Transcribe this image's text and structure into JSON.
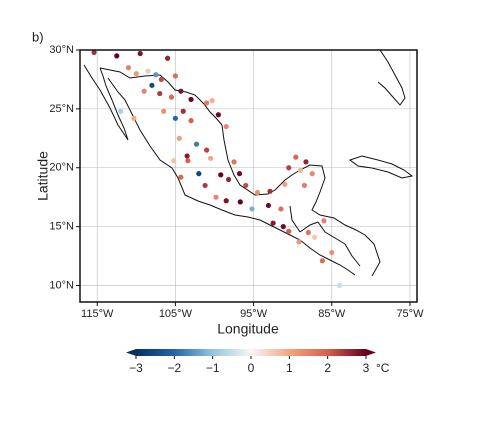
{
  "chart_data": {
    "type": "scatter",
    "panel_label": "b)",
    "xlabel": "Longitude",
    "ylabel": "Latitude",
    "xlim": [
      -117.2,
      -74.1
    ],
    "ylim": [
      8.6,
      30
    ],
    "xticks": [
      {
        "value": -115,
        "label": "115°W"
      },
      {
        "value": -105,
        "label": "105°W"
      },
      {
        "value": -95,
        "label": "95°W"
      },
      {
        "value": -85,
        "label": "85°W"
      },
      {
        "value": -75,
        "label": "75°W"
      }
    ],
    "yticks": [
      {
        "value": 10,
        "label": "10°N"
      },
      {
        "value": 15,
        "label": "15°N"
      },
      {
        "value": 20,
        "label": "20°N"
      },
      {
        "value": 25,
        "label": "25°N"
      },
      {
        "value": 30,
        "label": "30°N"
      }
    ],
    "grid": true,
    "x": [
      -115.4,
      -112.5,
      -109.5,
      -106,
      -111,
      -110,
      -108.5,
      -107.5,
      -106.8,
      -105,
      -108,
      -109,
      -107,
      -105.5,
      -104.3,
      -103,
      -112,
      -110.3,
      -106.5,
      -105,
      -104,
      -103,
      -101,
      -100.3,
      -99.5,
      -98.5,
      -104.5,
      -103.5,
      -102.3,
      -101,
      -100.5,
      -99.2,
      -98.2,
      -97.5,
      -96.8,
      -102,
      -103.4,
      -105.2,
      -104.3,
      -101.2,
      -99.8,
      -98.5,
      -96.7,
      -95.2,
      -96,
      -94.5,
      -93.1,
      -92.5,
      -91.5,
      -92.9,
      -91,
      -89.6,
      -88.3,
      -87.5,
      -89,
      -90.5,
      -88.5,
      -90.5,
      -89.2,
      -88,
      -87.2,
      -86.2,
      -85,
      -84,
      -86,
      -91.2
    ],
    "y": [
      29.8,
      29.5,
      29.7,
      29.3,
      28.5,
      28,
      28.2,
      27.9,
      27.5,
      27.8,
      27,
      26.5,
      26.3,
      26,
      26.5,
      25.8,
      24.8,
      24.2,
      24.8,
      24.2,
      24.8,
      24,
      25.5,
      25.7,
      24.5,
      23.5,
      22.5,
      21,
      22,
      21.5,
      20.8,
      19.4,
      19,
      20.5,
      19.5,
      19.5,
      20.6,
      20.6,
      19.2,
      18.5,
      17.5,
      17.2,
      17.1,
      16.5,
      18.5,
      17.9,
      16.8,
      15.3,
      16.5,
      18,
      18.6,
      20.9,
      20.5,
      19.5,
      19.8,
      20,
      18.5,
      14.6,
      13.7,
      14.5,
      14.1,
      12.1,
      12.8,
      10,
      15.5,
      15
    ],
    "values": [
      2.5,
      3,
      2.8,
      2.6,
      1.5,
      1.2,
      0.6,
      -1.5,
      2.2,
      1.8,
      -2.5,
      1.5,
      2.4,
      1.9,
      2.8,
      3,
      -0.8,
      1,
      1.3,
      -2,
      2.5,
      2,
      1.6,
      0.9,
      2.9,
      1.4,
      1.1,
      2.7,
      -1.8,
      2.3,
      1,
      3,
      2.6,
      1.7,
      2.9,
      -2.6,
      2,
      0.7,
      1.9,
      2.4,
      1.5,
      2.8,
      3,
      -1.2,
      2.2,
      1.3,
      2.9,
      2.7,
      1.8,
      2.5,
      1.1,
      1.9,
      2.6,
      1.4,
      0.8,
      2.3,
      1.6,
      2,
      1.2,
      1.7,
      0.6,
      1.8,
      1.3,
      -0.5,
      1.5,
      2.9
    ],
    "colorbar": {
      "clim": [
        -3,
        3
      ],
      "unit": "°C",
      "colors": [
        "#053061",
        "#2166ac",
        "#92c5de",
        "#f7f7f7",
        "#f4a582",
        "#d6604d",
        "#67001f"
      ],
      "ticks": [
        {
          "value": -3,
          "label": "−3"
        },
        {
          "value": -2,
          "label": "−2"
        },
        {
          "value": -1,
          "label": "−1"
        },
        0,
        1,
        2,
        3
      ]
    }
  }
}
